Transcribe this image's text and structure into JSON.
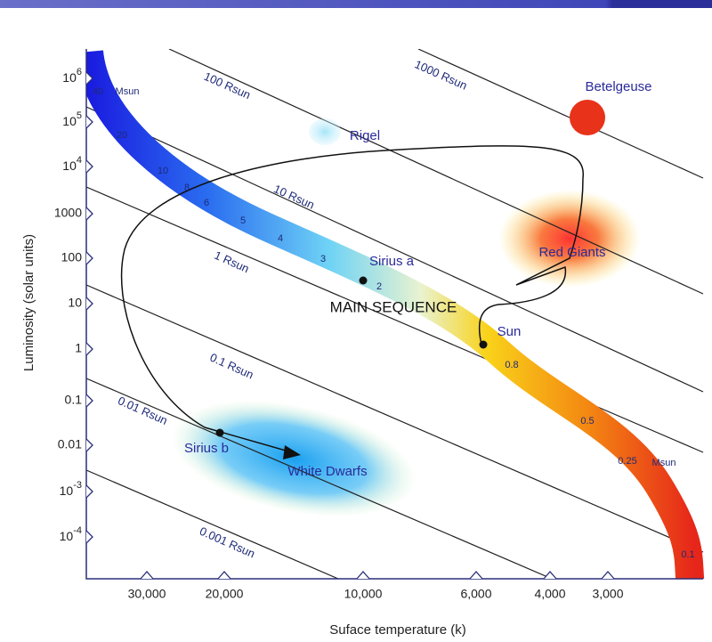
{
  "axes": {
    "y_title": "Luminosity (solar units)",
    "x_title": "Suface temperature (k)"
  },
  "y_ticks": [
    {
      "base": "10",
      "exp": "6"
    },
    {
      "base": "10",
      "exp": "5"
    },
    {
      "base": "10",
      "exp": "4"
    },
    "1000",
    "100",
    "10",
    "1",
    "0.1",
    "0.01",
    {
      "base": "10",
      "exp": "-3"
    },
    {
      "base": "10",
      "exp": "-4"
    }
  ],
  "x_ticks": [
    "30,000",
    "20,000",
    "10,000",
    "6,000",
    "4,000",
    "3,000"
  ],
  "radius_lines": [
    "1000 Rsun",
    "100 Rsun",
    "10 Rsun",
    "1 Rsun",
    "0.1 Rsun",
    "0.01 Rsun",
    "0.001 Rsun"
  ],
  "mass_labels": [
    "40",
    "Msun",
    "20",
    "10",
    "8",
    "6",
    "5",
    "4",
    "3",
    "2",
    "0.8",
    "0.5",
    "0.25",
    "Msun",
    "0.1"
  ],
  "stars": [
    "Betelgeuse",
    "Rigel",
    "Sirius a",
    "Sun",
    "Sirius b"
  ],
  "regions": [
    "Red Giants",
    "White Dwarfs",
    "MAIN SEQUENCE"
  ]
}
